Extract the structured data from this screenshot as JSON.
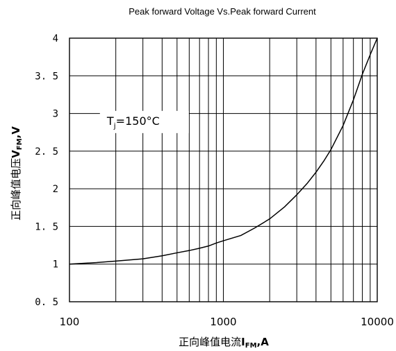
{
  "chart_data": {
    "type": "line",
    "title": "Peak forward Voltage Vs.Peak forward Current",
    "xlabel_cn": "正向峰值电流",
    "xlabel_sym": "I",
    "xlabel_sub": "FM",
    "xlabel_unit": ",A",
    "ylabel_cn": "正向峰值电压",
    "ylabel_sym": "V",
    "ylabel_sub": "FM",
    "ylabel_unit": ",V",
    "x_scale": "log",
    "xlim": [
      100,
      10000
    ],
    "ylim": [
      0.5,
      4
    ],
    "x_ticks": [
      100,
      1000,
      10000
    ],
    "x_tick_labels": [
      "100",
      "1000",
      "10000"
    ],
    "y_ticks": [
      0.5,
      1,
      1.5,
      2,
      2.5,
      3,
      3.5,
      4
    ],
    "y_tick_labels": [
      "0. 5",
      "1",
      "1. 5",
      "2",
      "2. 5",
      "3",
      "3. 5",
      "4"
    ],
    "grid": true,
    "annotation": {
      "sym": "T",
      "sub": "j",
      "text": "=150°C"
    },
    "series": [
      {
        "x": [
          100,
          150,
          200,
          300,
          400,
          500,
          600,
          700,
          800,
          900,
          1000,
          1300,
          1600,
          2000,
          2500,
          3000,
          3500,
          4000,
          4500,
          5000,
          6000,
          7000,
          8000,
          9000,
          10000
        ],
        "y": [
          1.0,
          1.02,
          1.04,
          1.07,
          1.11,
          1.15,
          1.18,
          1.21,
          1.24,
          1.28,
          1.31,
          1.38,
          1.48,
          1.6,
          1.76,
          1.92,
          2.07,
          2.22,
          2.37,
          2.52,
          2.84,
          3.18,
          3.52,
          3.78,
          4.0
        ]
      }
    ]
  }
}
